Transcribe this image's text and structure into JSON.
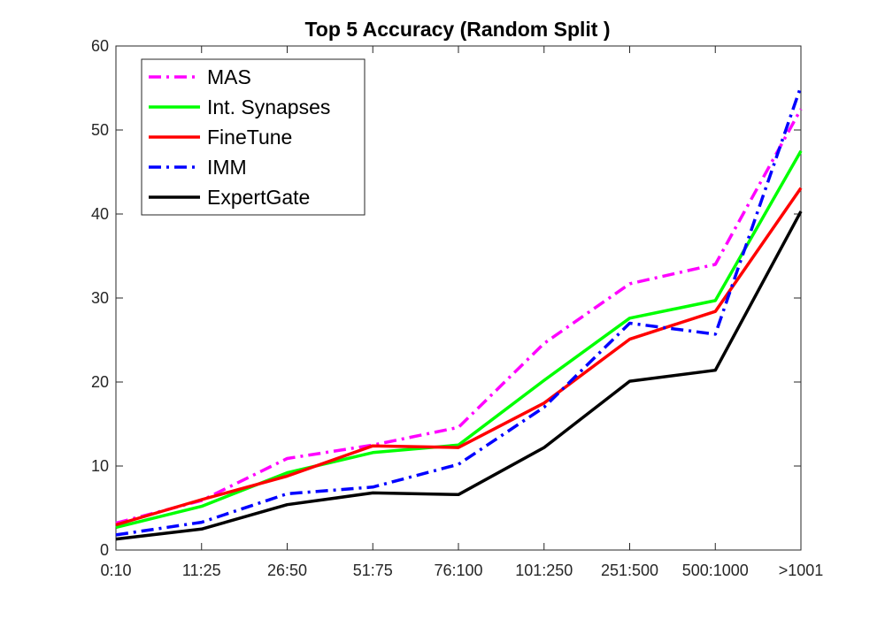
{
  "chart_data": {
    "type": "line",
    "title": "Top 5 Accuracy (Random Split )",
    "xlabel": "",
    "ylabel": "",
    "categories": [
      "0:10",
      "11:25",
      "26:50",
      "51:75",
      "76:100",
      "101:250",
      "251:500",
      "500:1000",
      ">1001"
    ],
    "ylim": [
      0,
      60
    ],
    "yticks": [
      0,
      10,
      20,
      30,
      40,
      50,
      60
    ],
    "grid": false,
    "legend_position": "top-left",
    "series": [
      {
        "name": "MAS",
        "color": "#ff00ff",
        "dash": "dash-dot",
        "values": [
          3.2,
          5.9,
          10.9,
          12.5,
          14.6,
          24.6,
          31.7,
          34.0,
          52.5
        ]
      },
      {
        "name": "Int. Synapses",
        "color": "#00ff00",
        "dash": "solid",
        "values": [
          2.7,
          5.2,
          9.2,
          11.6,
          12.5,
          20.2,
          27.6,
          29.7,
          47.5
        ]
      },
      {
        "name": "FineTune",
        "color": "#ff0000",
        "dash": "solid",
        "values": [
          3.0,
          6.0,
          8.8,
          12.4,
          12.2,
          17.5,
          25.1,
          28.4,
          43.1
        ]
      },
      {
        "name": "IMM",
        "color": "#0000ff",
        "dash": "dash-dot",
        "values": [
          1.8,
          3.3,
          6.7,
          7.5,
          10.2,
          17.0,
          27.0,
          25.7,
          55.2
        ]
      },
      {
        "name": "ExpertGate",
        "color": "#000000",
        "dash": "solid",
        "values": [
          1.3,
          2.5,
          5.4,
          6.8,
          6.6,
          12.2,
          20.1,
          21.4,
          40.3
        ]
      }
    ]
  }
}
